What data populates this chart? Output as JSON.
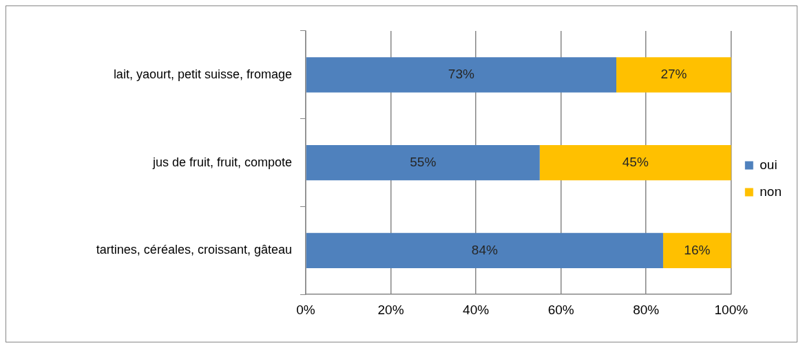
{
  "chart_data": {
    "type": "bar",
    "orientation": "horizontal",
    "stacked": true,
    "categories": [
      "lait, yaourt, petit suisse, fromage",
      "jus de fruit, fruit, compote",
      "tartines, céréales, croissant, gâteau"
    ],
    "series": [
      {
        "name": "oui",
        "color": "#4f81bd",
        "values": [
          73,
          55,
          84
        ],
        "value_labels": [
          "73%",
          "55%",
          "84%"
        ]
      },
      {
        "name": "non",
        "color": "#ffc000",
        "values": [
          27,
          45,
          16
        ],
        "value_labels": [
          "27%",
          "45%",
          "16%"
        ]
      }
    ],
    "xlim": [
      0,
      100
    ],
    "xticks": [
      {
        "value": 0,
        "label": "0%"
      },
      {
        "value": 20,
        "label": "20%"
      },
      {
        "value": 40,
        "label": "40%"
      },
      {
        "value": 60,
        "label": "60%"
      },
      {
        "value": 80,
        "label": "80%"
      },
      {
        "value": 100,
        "label": "100%"
      }
    ],
    "grid": "x",
    "legend": "right"
  }
}
